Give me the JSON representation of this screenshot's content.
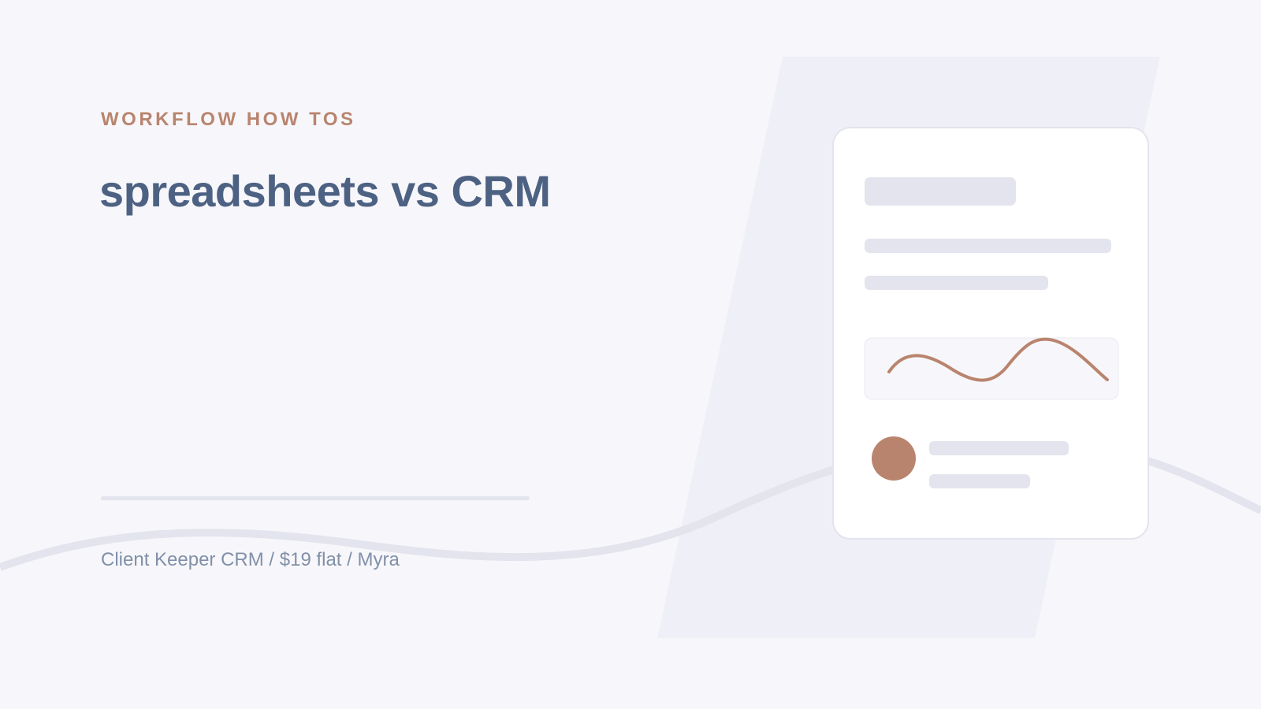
{
  "eyebrow": "WORKFLOW HOW TOS",
  "title": "spreadsheets vs CRM",
  "footer": "Client Keeper CRM / $19 flat / Myra"
}
